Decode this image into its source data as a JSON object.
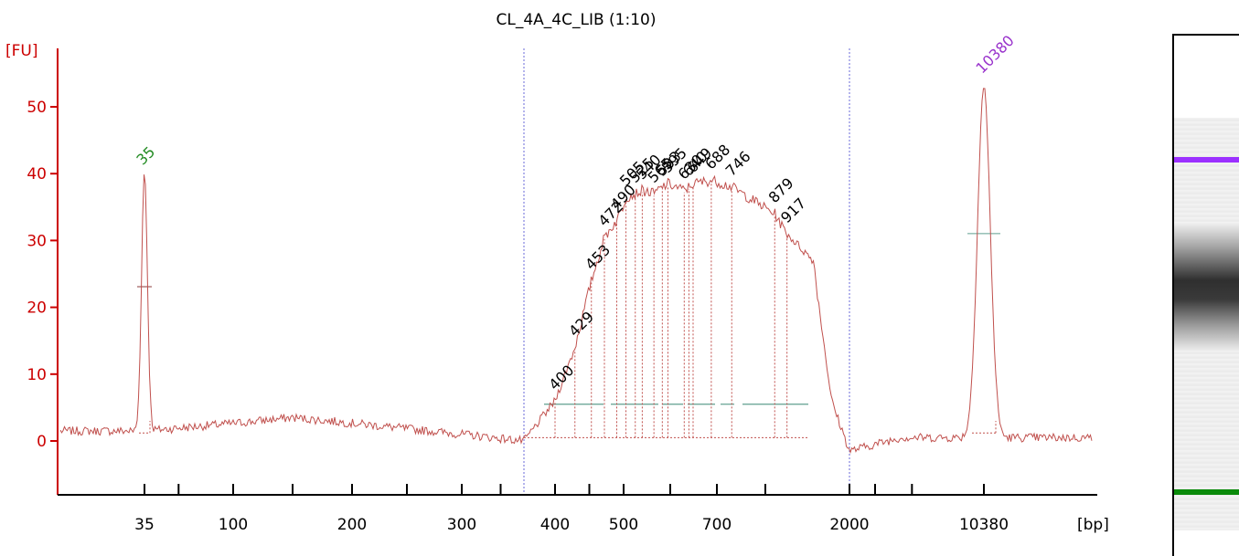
{
  "chart_data": {
    "type": "line",
    "title": "CL_4A_4C_LIB (1:10)",
    "ylabel": "[FU]",
    "xlabel": "[bp]",
    "ylim": [
      -8,
      58
    ],
    "y_ticks": [
      0,
      10,
      20,
      30,
      40,
      50
    ],
    "x_tick_labels": [
      "35",
      "100",
      "200",
      "300",
      "400",
      "500",
      "700",
      "2000",
      "10380"
    ],
    "grid": false,
    "series": [
      {
        "color": "#c0504d",
        "x_bp": [
          35,
          150,
          300,
          380,
          400,
          429,
          453,
          472,
          490,
          505,
          525,
          540,
          565,
          583,
          595,
          630,
          640,
          649,
          688,
          746,
          879,
          917,
          1100,
          1500,
          2000,
          3000,
          10380,
          15000
        ],
        "y": [
          1.5,
          3.5,
          1.0,
          0.0,
          6.0,
          14.0,
          24.0,
          30.5,
          33.0,
          36.5,
          37.0,
          37.5,
          37.0,
          38.0,
          38.5,
          37.5,
          38.0,
          38.5,
          39.0,
          38.0,
          34.0,
          31.0,
          22.0,
          6.0,
          -1.5,
          0.5,
          0.5,
          0.5
        ]
      }
    ],
    "peaks": [
      {
        "label": "35",
        "bp": 35,
        "height": 39.8,
        "color": "#228b22"
      },
      {
        "label": "10380",
        "bp": 10380,
        "height": 53.5,
        "color": "#9932cc"
      }
    ],
    "fragment_labels": [
      "400",
      "429",
      "453",
      "472",
      "490",
      "505",
      "525",
      "540",
      "565",
      "583",
      "595",
      "630",
      "640",
      "649",
      "688",
      "746",
      "879",
      "917"
    ],
    "region_boundaries_bp": [
      380,
      2000
    ]
  },
  "gel": {
    "upper_marker_color": "#9b30ff",
    "lower_marker_color": "#0a8a0a"
  }
}
